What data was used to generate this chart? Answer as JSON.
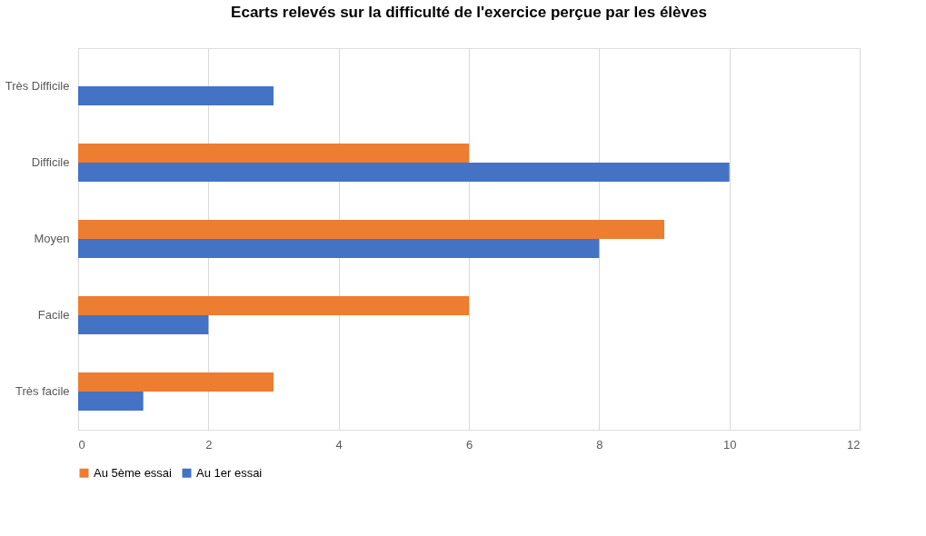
{
  "chart_data": {
    "type": "bar",
    "orientation": "horizontal",
    "title": "Ecarts relevés sur la difficulté de l'exercice perçue par les élèves",
    "categories": [
      "Très Difficile",
      "Difficile",
      "Moyen",
      "Facile",
      "Très facile"
    ],
    "series": [
      {
        "name": "Au 5ème essai",
        "color": "#ed7d31",
        "values": [
          null,
          6,
          9,
          6,
          3
        ]
      },
      {
        "name": "Au 1er essai",
        "color": "#4472c4",
        "values": [
          3,
          10,
          8,
          2,
          1
        ]
      }
    ],
    "xlim": [
      0,
      12
    ],
    "xticks": [
      0,
      2,
      4,
      6,
      8,
      10,
      12
    ],
    "grid": "x",
    "legend": "bottom"
  }
}
